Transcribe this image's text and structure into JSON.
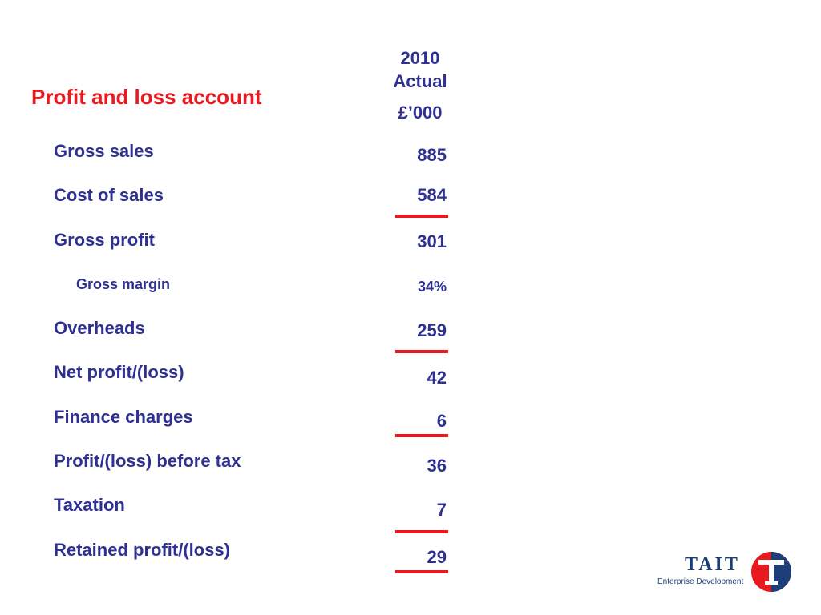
{
  "title": "Profit and loss account",
  "column": {
    "year": "2010",
    "label": "Actual",
    "unit": "£’000"
  },
  "rows": [
    {
      "label": "Gross sales",
      "value": "885"
    },
    {
      "label": "Cost of sales",
      "value": "584"
    },
    {
      "label": "Gross profit",
      "value": "301"
    },
    {
      "label": "Gross margin",
      "value": "34%"
    },
    {
      "label": "Overheads",
      "value": "259"
    },
    {
      "label": "Net profit/(loss)",
      "value": "42"
    },
    {
      "label": "Finance charges",
      "value": "6"
    },
    {
      "label": "Profit/(loss) before tax",
      "value": "36"
    },
    {
      "label": "Taxation",
      "value": "7"
    },
    {
      "label": "Retained profit/(loss)",
      "value": "29"
    }
  ],
  "logo": {
    "name": "TAIT",
    "tagline": "Enterprise Development",
    "mark": "T"
  },
  "colors": {
    "title": "#e8191f",
    "text": "#2e3192",
    "rule": "#e8191f",
    "logo_navy": "#1c3f7a",
    "logo_red": "#e8191f"
  }
}
